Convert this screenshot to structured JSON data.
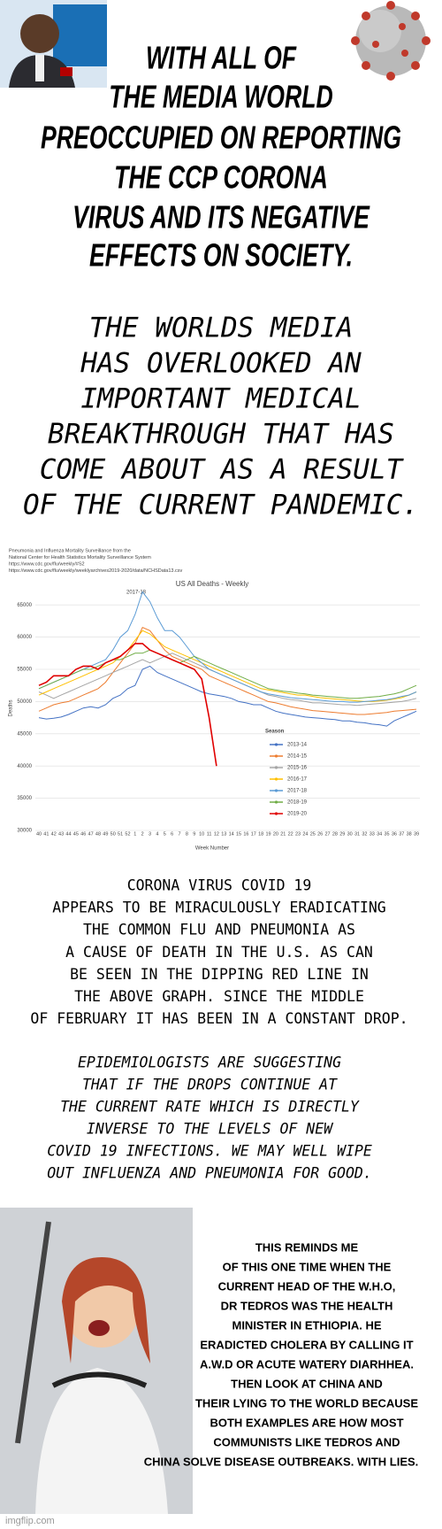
{
  "header": {
    "title_lines": [
      "WITH ALL OF",
      "THE MEDIA WORLD",
      "PREOCCUPIED ON REPORTING",
      "THE CCP CORONA",
      "VIRUS AND ITS NEGATIVE",
      "EFFECTS ON SOCIETY."
    ]
  },
  "intro_lines": [
    "THE WORLDS MEDIA",
    "HAS OVERLOOKED AN",
    "IMPORTANT MEDICAL",
    "BREAKTHROUGH THAT HAS",
    "COME ABOUT AS A RESULT",
    "OF THE CURRENT PANDEMIC."
  ],
  "chart_data": {
    "type": "line",
    "notes": [
      "Pneumonia and Influenza Mortality Surveillance from the",
      "National Center for Health Statistics Mortality Surveillance System",
      "https://www.cdc.gov/flu/weekly/#S2",
      "https://www.cdc.gov/flu/weekly/weeklyarchives2019-2020/data/NCHSData13.csv"
    ],
    "title": "US All Deaths - Weekly",
    "annotation": "2017-18",
    "y_label": "Deaths",
    "x_label": "Week Number",
    "legend_title": "Season",
    "categories": [
      40,
      41,
      42,
      43,
      44,
      45,
      46,
      47,
      48,
      49,
      50,
      51,
      52,
      1,
      2,
      3,
      4,
      5,
      6,
      7,
      8,
      9,
      10,
      11,
      12,
      13,
      14,
      15,
      16,
      17,
      18,
      19,
      20,
      21,
      22,
      23,
      24,
      25,
      26,
      27,
      28,
      29,
      30,
      31,
      32,
      33,
      34,
      35,
      36,
      37,
      38,
      39
    ],
    "ylim": [
      30000,
      67500
    ],
    "yticks": [
      30000,
      35000,
      40000,
      45000,
      50000,
      55000,
      60000,
      65000
    ],
    "grid": true,
    "series": [
      {
        "name": "2013-14",
        "color": "#4472c4",
        "values": [
          47500,
          47300,
          47400,
          47600,
          48000,
          48500,
          49000,
          49200,
          49000,
          49500,
          50500,
          51000,
          52000,
          52500,
          55000,
          55500,
          54500,
          54000,
          53500,
          53000,
          52500,
          52000,
          51500,
          51200,
          51000,
          50800,
          50500,
          50000,
          49800,
          49500,
          49500,
          49000,
          48500,
          48200,
          48000,
          47800,
          47600,
          47500,
          47400,
          47300,
          47200,
          47000,
          47000,
          46800,
          46700,
          46500,
          46400,
          46200,
          47000,
          47500,
          48000,
          48500
        ]
      },
      {
        "name": "2014-15",
        "color": "#ed7d31",
        "values": [
          48500,
          49000,
          49500,
          49800,
          50000,
          50500,
          51000,
          51500,
          52000,
          53000,
          54500,
          56000,
          57500,
          59000,
          61500,
          61000,
          59500,
          58000,
          57000,
          56500,
          56000,
          55500,
          55000,
          54000,
          53500,
          53000,
          52500,
          52000,
          51500,
          51000,
          50500,
          50000,
          49800,
          49500,
          49200,
          49000,
          48800,
          48600,
          48500,
          48400,
          48300,
          48200,
          48100,
          48000,
          48000,
          48100,
          48200,
          48300,
          48500,
          48600,
          48700,
          48800
        ]
      },
      {
        "name": "2015-16",
        "color": "#a5a5a5",
        "values": [
          51500,
          51000,
          50500,
          51000,
          51500,
          52000,
          52500,
          53000,
          53500,
          54000,
          54500,
          55000,
          55500,
          56000,
          56500,
          56000,
          56500,
          57000,
          57500,
          57000,
          56500,
          56000,
          55500,
          55000,
          54500,
          54000,
          53500,
          53000,
          52500,
          52000,
          51500,
          51000,
          50800,
          50500,
          50300,
          50200,
          50000,
          49800,
          49800,
          49700,
          49600,
          49500,
          49500,
          49400,
          49500,
          49600,
          49700,
          49800,
          49900,
          50000,
          50200,
          50500
        ]
      },
      {
        "name": "2016-17",
        "color": "#ffc000",
        "values": [
          51000,
          51500,
          52000,
          52500,
          53000,
          53500,
          54000,
          54500,
          55000,
          55500,
          56000,
          57000,
          58000,
          59500,
          61000,
          60500,
          59500,
          58500,
          58000,
          57500,
          57000,
          56500,
          56000,
          55500,
          55000,
          54500,
          54000,
          53500,
          53000,
          52500,
          52000,
          51800,
          51600,
          51400,
          51200,
          51000,
          51000,
          50800,
          50600,
          50500,
          50400,
          50300,
          50200,
          50100,
          50000,
          50000,
          50100,
          50200,
          50400,
          50600,
          51000,
          51500
        ]
      },
      {
        "name": "2017-18",
        "color": "#5b9bd5",
        "values": [
          52000,
          52500,
          53000,
          53500,
          54000,
          54500,
          55000,
          55500,
          56000,
          56500,
          58000,
          60000,
          61000,
          63500,
          67000,
          65500,
          63000,
          61000,
          61000,
          60000,
          58500,
          57000,
          56000,
          55000,
          54500,
          54000,
          53500,
          53000,
          52500,
          52000,
          51500,
          51200,
          51000,
          50800,
          50600,
          50500,
          50400,
          50300,
          50200,
          50100,
          50000,
          50000,
          49900,
          49900,
          50000,
          50100,
          50200,
          50300,
          50500,
          50800,
          51000,
          51500
        ]
      },
      {
        "name": "2018-19",
        "color": "#70ad47",
        "values": [
          52000,
          52500,
          53000,
          53500,
          54000,
          54500,
          55000,
          55000,
          55500,
          56000,
          56500,
          56500,
          57000,
          57500,
          57500,
          58000,
          57500,
          57000,
          56500,
          56000,
          56500,
          57000,
          56500,
          56000,
          55500,
          55000,
          54500,
          54000,
          53500,
          53000,
          52500,
          52000,
          51800,
          51600,
          51500,
          51300,
          51200,
          51000,
          50900,
          50800,
          50700,
          50600,
          50500,
          50500,
          50600,
          50700,
          50800,
          51000,
          51200,
          51500,
          52000,
          52500
        ]
      },
      {
        "name": "2019-20",
        "color": "#e00000",
        "values": [
          52500,
          53000,
          54000,
          54000,
          54000,
          55000,
          55500,
          55500,
          55000,
          56000,
          56500,
          57000,
          58000,
          59000,
          59000,
          58000,
          57500,
          57000,
          56500,
          56000,
          55500,
          55000,
          53500,
          47500,
          40000,
          null,
          null,
          null,
          null,
          null,
          null,
          null,
          null,
          null,
          null,
          null,
          null,
          null,
          null,
          null,
          null,
          null,
          null,
          null,
          null,
          null,
          null,
          null,
          null,
          null,
          null,
          null
        ]
      }
    ]
  },
  "paragraph_lines": [
    "CORONA VIRUS COVID 19",
    "APPEARS TO BE MIRACULOUSLY ERADICATING",
    "THE COMMON FLU AND PNEUMONIA AS",
    "A CAUSE OF DEATH IN THE U.S. AS CAN",
    "BE SEEN IN THE DIPPING RED LINE IN",
    "THE ABOVE GRAPH. SINCE THE MIDDLE",
    "OF FEBRUARY IT HAS BEEN IN A CONSTANT DROP."
  ],
  "italic_lines": [
    "EPIDEMIOLOGISTS ARE SUGGESTING",
    "THAT IF THE DROPS CONTINUE AT",
    "THE CURRENT RATE WHICH IS DIRECTLY",
    "INVERSE TO THE LEVELS OF NEW",
    "COVID 19 INFECTIONS. WE MAY WELL WIPE",
    "OUT INFLUENZA AND PNEUMONIA FOR GOOD."
  ],
  "caption_lines": [
    "THIS REMINDS ME",
    "OF THIS ONE TIME WHEN THE",
    "CURRENT HEAD OF THE W.H.O,",
    "DR TEDROS WAS THE HEALTH",
    "MINISTER IN ETHIOPIA. HE",
    "ERADICTED CHOLERA BY CALLING IT",
    "A.W.D OR ACUTE WATERY DIARHHEA.",
    "THEN LOOK AT CHINA AND",
    "THEIR LYING TO THE WORLD BECAUSE",
    "BOTH EXAMPLES ARE HOW MOST",
    "COMMUNISTS LIKE TEDROS AND",
    "CHINA SOLVE DISEASE OUTBREAKS. WITH LIES."
  ],
  "watermark": "imgflip.com"
}
